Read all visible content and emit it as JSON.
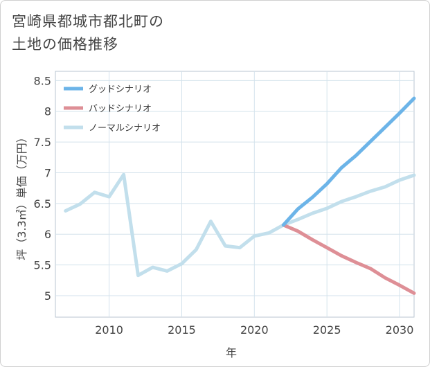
{
  "title_line1": "宮崎県都城市都北町の",
  "title_line2": "土地の価格推移",
  "chart_data": {
    "type": "line",
    "xlabel": "年",
    "ylabel": "坪（3.3㎡）単価（万円）",
    "xlim": [
      2006.3,
      2031
    ],
    "ylim": [
      4.65,
      8.65
    ],
    "x_ticks": [
      2010,
      2015,
      2020,
      2025,
      2030
    ],
    "y_ticks": [
      5,
      5.5,
      6,
      6.5,
      7,
      7.5,
      8,
      8.5
    ],
    "grid": true,
    "legend_position": "top-left",
    "series": [
      {
        "name": "グッドシナリオ",
        "color": "#6cb4e8",
        "x": [
          2022,
          2023,
          2024,
          2025,
          2026,
          2027,
          2028,
          2029,
          2030,
          2031
        ],
        "y": [
          6.15,
          6.41,
          6.6,
          6.82,
          7.08,
          7.28,
          7.51,
          7.74,
          7.97,
          8.21
        ]
      },
      {
        "name": "バッドシナリオ",
        "color": "#de8f96",
        "x": [
          2022,
          2023,
          2024,
          2025,
          2026,
          2027,
          2028,
          2029,
          2030,
          2031
        ],
        "y": [
          6.15,
          6.05,
          5.91,
          5.78,
          5.65,
          5.54,
          5.44,
          5.29,
          5.17,
          5.04
        ]
      },
      {
        "name": "ノーマルシナリオ",
        "color": "#c2dfec",
        "x": [
          2007,
          2008,
          2009,
          2010,
          2011,
          2012,
          2013,
          2014,
          2015,
          2016,
          2017,
          2018,
          2019,
          2020,
          2021,
          2022,
          2023,
          2024,
          2025,
          2026,
          2027,
          2028,
          2029,
          2030,
          2031
        ],
        "y": [
          6.38,
          6.49,
          6.68,
          6.61,
          6.97,
          5.33,
          5.46,
          5.4,
          5.52,
          5.75,
          6.21,
          5.81,
          5.78,
          5.97,
          6.02,
          6.15,
          6.24,
          6.34,
          6.42,
          6.53,
          6.61,
          6.7,
          6.77,
          6.88,
          6.96
        ]
      }
    ]
  }
}
